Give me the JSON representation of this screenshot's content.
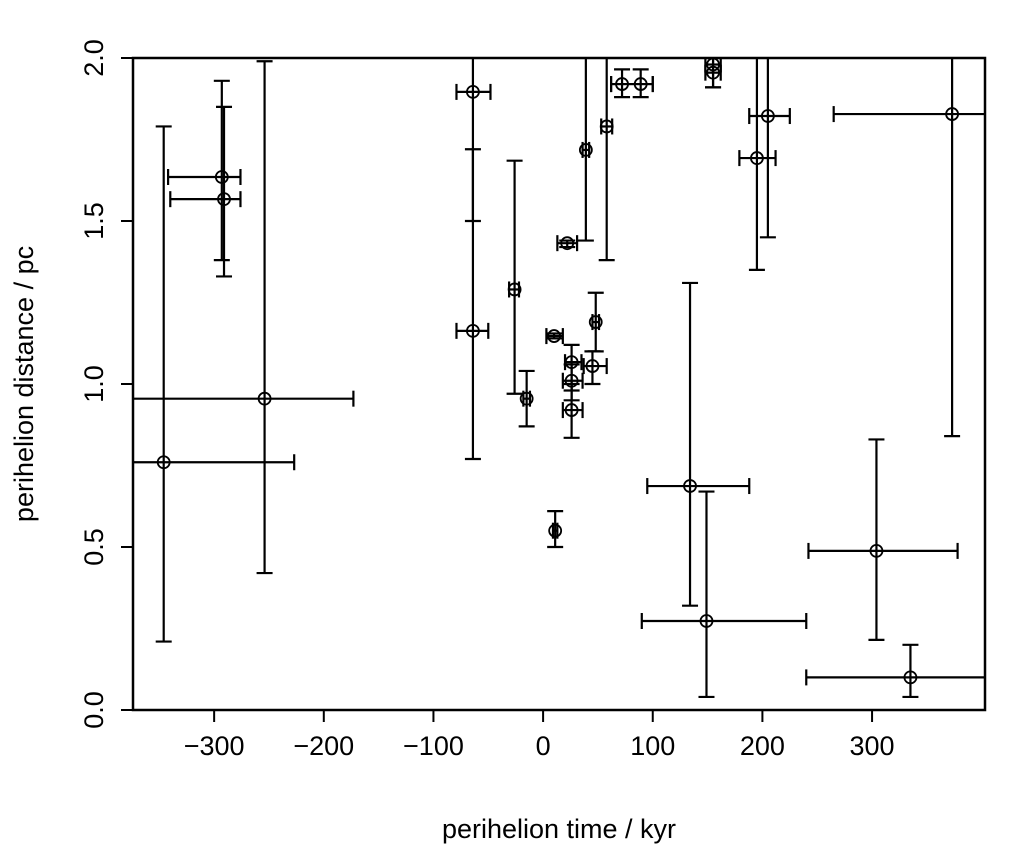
{
  "chart_data": {
    "type": "scatter",
    "title": "",
    "xlabel": "perihelion time / kyr",
    "ylabel": "perihelion distance / pc",
    "xlim": [
      -374,
      403
    ],
    "ylim": [
      0,
      2
    ],
    "xticks": [
      -300,
      -200,
      -100,
      0,
      100,
      200,
      300
    ],
    "xtick_labels": [
      "−300",
      "−200",
      "−100",
      "0",
      "100",
      "200",
      "300"
    ],
    "yticks": [
      0,
      0.5,
      1,
      1.5,
      2
    ],
    "ytick_labels": [
      "0.0",
      "0.5",
      "1.0",
      "1.5",
      "2.0"
    ],
    "grid": false,
    "fields": [
      "x",
      "y",
      "x_low",
      "x_high",
      "y_low",
      "y_high"
    ],
    "points": [
      [
        -346,
        0.76,
        -380,
        -227,
        0.21,
        1.79
      ],
      [
        -254,
        0.955,
        -380,
        -173,
        0.42,
        1.99
      ],
      [
        -293,
        1.635,
        -342,
        -276,
        1.38,
        1.93
      ],
      [
        -291,
        1.567,
        -340,
        -276,
        1.33,
        1.85
      ],
      [
        -64,
        1.896,
        -79,
        -48,
        1.5,
        2.1
      ],
      [
        -64,
        1.163,
        -79,
        -50,
        0.77,
        1.72
      ],
      [
        -26,
        1.29,
        -31,
        -22,
        0.97,
        1.685
      ],
      [
        -15,
        0.955,
        -18,
        -12,
        0.87,
        1.04
      ],
      [
        11,
        0.55,
        9,
        13,
        0.5,
        0.61
      ],
      [
        10,
        1.147,
        3,
        18,
        1.14,
        1.155
      ],
      [
        22,
        1.432,
        13,
        31,
        1.42,
        1.44
      ],
      [
        39,
        1.718,
        36,
        42,
        1.44,
        2.1
      ],
      [
        58,
        1.79,
        53,
        63,
        1.38,
        2.1
      ],
      [
        72,
        1.92,
        62,
        100,
        1.88,
        1.965
      ],
      [
        89,
        1.92,
        62,
        100,
        1.88,
        1.965
      ],
      [
        155,
        1.98,
        148,
        162,
        1.91,
        2.02
      ],
      [
        155,
        1.955,
        148,
        162,
        1.91,
        2.0
      ],
      [
        26,
        1.067,
        20,
        35,
        0.98,
        1.12
      ],
      [
        26,
        1.01,
        18,
        36,
        0.95,
        1.06
      ],
      [
        26,
        0.92,
        18,
        36,
        0.835,
        1.0
      ],
      [
        48,
        1.19,
        45,
        51,
        1.1,
        1.28
      ],
      [
        45,
        1.055,
        37,
        58,
        1.0,
        1.1
      ],
      [
        134,
        0.687,
        95,
        188,
        0.32,
        1.31
      ],
      [
        149,
        0.273,
        90,
        240,
        0.04,
        0.67
      ],
      [
        195,
        1.693,
        179,
        212,
        1.35,
        2.1
      ],
      [
        205,
        1.822,
        188,
        225,
        1.45,
        2.1
      ],
      [
        373,
        1.828,
        265,
        410,
        0.84,
        2.1
      ],
      [
        304,
        0.488,
        242,
        378,
        0.215,
        0.83
      ],
      [
        335,
        0.1,
        240,
        410,
        0.04,
        0.2
      ]
    ]
  }
}
